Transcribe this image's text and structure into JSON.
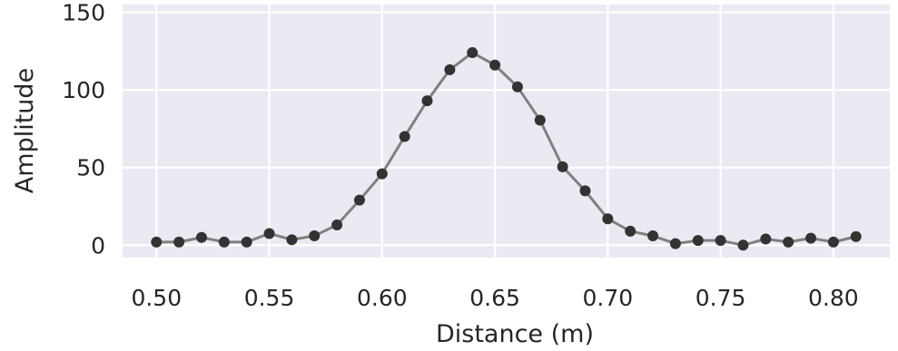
{
  "chart_data": {
    "type": "line",
    "title": "",
    "xlabel": "Distance (m)",
    "ylabel": "Amplitude",
    "xlim": [
      0.485,
      0.825
    ],
    "ylim": [
      -8,
      155
    ],
    "xticks": [
      0.5,
      0.55,
      0.6,
      0.65,
      0.7,
      0.75,
      0.8
    ],
    "xtick_labels": [
      "0.50",
      "0.55",
      "0.60",
      "0.65",
      "0.70",
      "0.75",
      "0.80"
    ],
    "yticks": [
      0,
      50,
      100,
      150
    ],
    "ytick_labels": [
      "0",
      "50",
      "100",
      "150"
    ],
    "grid": true,
    "colors": {
      "background": "#eaeaf2",
      "grid": "#ffffff",
      "line": "#808080",
      "marker": "#333333"
    },
    "series": [
      {
        "x": [
          0.5,
          0.51,
          0.52,
          0.53,
          0.54,
          0.55,
          0.56,
          0.57,
          0.58,
          0.59,
          0.6,
          0.61,
          0.62,
          0.63,
          0.64,
          0.65,
          0.66,
          0.67,
          0.68,
          0.69,
          0.7,
          0.71,
          0.72,
          0.73,
          0.74,
          0.75,
          0.76,
          0.77,
          0.78,
          0.79,
          0.8,
          0.81
        ],
        "values": [
          2,
          2,
          5,
          2,
          2,
          7.5,
          3.5,
          6,
          13,
          29,
          46,
          70,
          93,
          113,
          124,
          116,
          102,
          80.5,
          50.5,
          35,
          17,
          9,
          6,
          1,
          3,
          3,
          0,
          4,
          2,
          4.5,
          2,
          5.5
        ]
      }
    ]
  }
}
